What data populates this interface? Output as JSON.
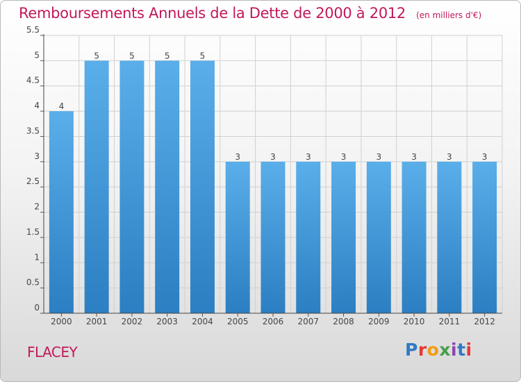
{
  "page": {
    "commune": "FLACEY",
    "brand": "Proxiti",
    "brand_colors": [
      "#2e7bc4",
      "#e53935",
      "#f39c12",
      "#43a047",
      "#8e44ad",
      "#2e7bc4",
      "#e53935"
    ]
  },
  "chart_data": {
    "type": "bar",
    "title": "Remboursements Annuels de la Dette de 2000 à 2012",
    "unit": "(en milliers d'€)",
    "xlabel": "",
    "ylabel": "",
    "categories": [
      "2000",
      "2001",
      "2002",
      "2003",
      "2004",
      "2005",
      "2006",
      "2007",
      "2008",
      "2009",
      "2010",
      "2011",
      "2012"
    ],
    "values": [
      4,
      5,
      5,
      5,
      5,
      3,
      3,
      3,
      3,
      3,
      3,
      3,
      3
    ],
    "data_labels": [
      "4",
      "5",
      "5",
      "5",
      "5",
      "3",
      "3",
      "3",
      "3",
      "3",
      "3",
      "3",
      "3"
    ],
    "ylim": [
      0,
      5.5
    ],
    "yticks": [
      0,
      0.5,
      1,
      1.5,
      2,
      2.5,
      3,
      3.5,
      4,
      4.5,
      5,
      5.5
    ],
    "ytick_labels": [
      "0",
      "0.5",
      "1",
      "1.5",
      "2",
      "2.5",
      "3",
      "3.5",
      "4",
      "4.5",
      "5",
      "5.5"
    ],
    "grid": true,
    "bar_color": "#4aa3e6",
    "bar_color_dark": "#2b7fc2",
    "grid_color": "#d0d0d0"
  }
}
